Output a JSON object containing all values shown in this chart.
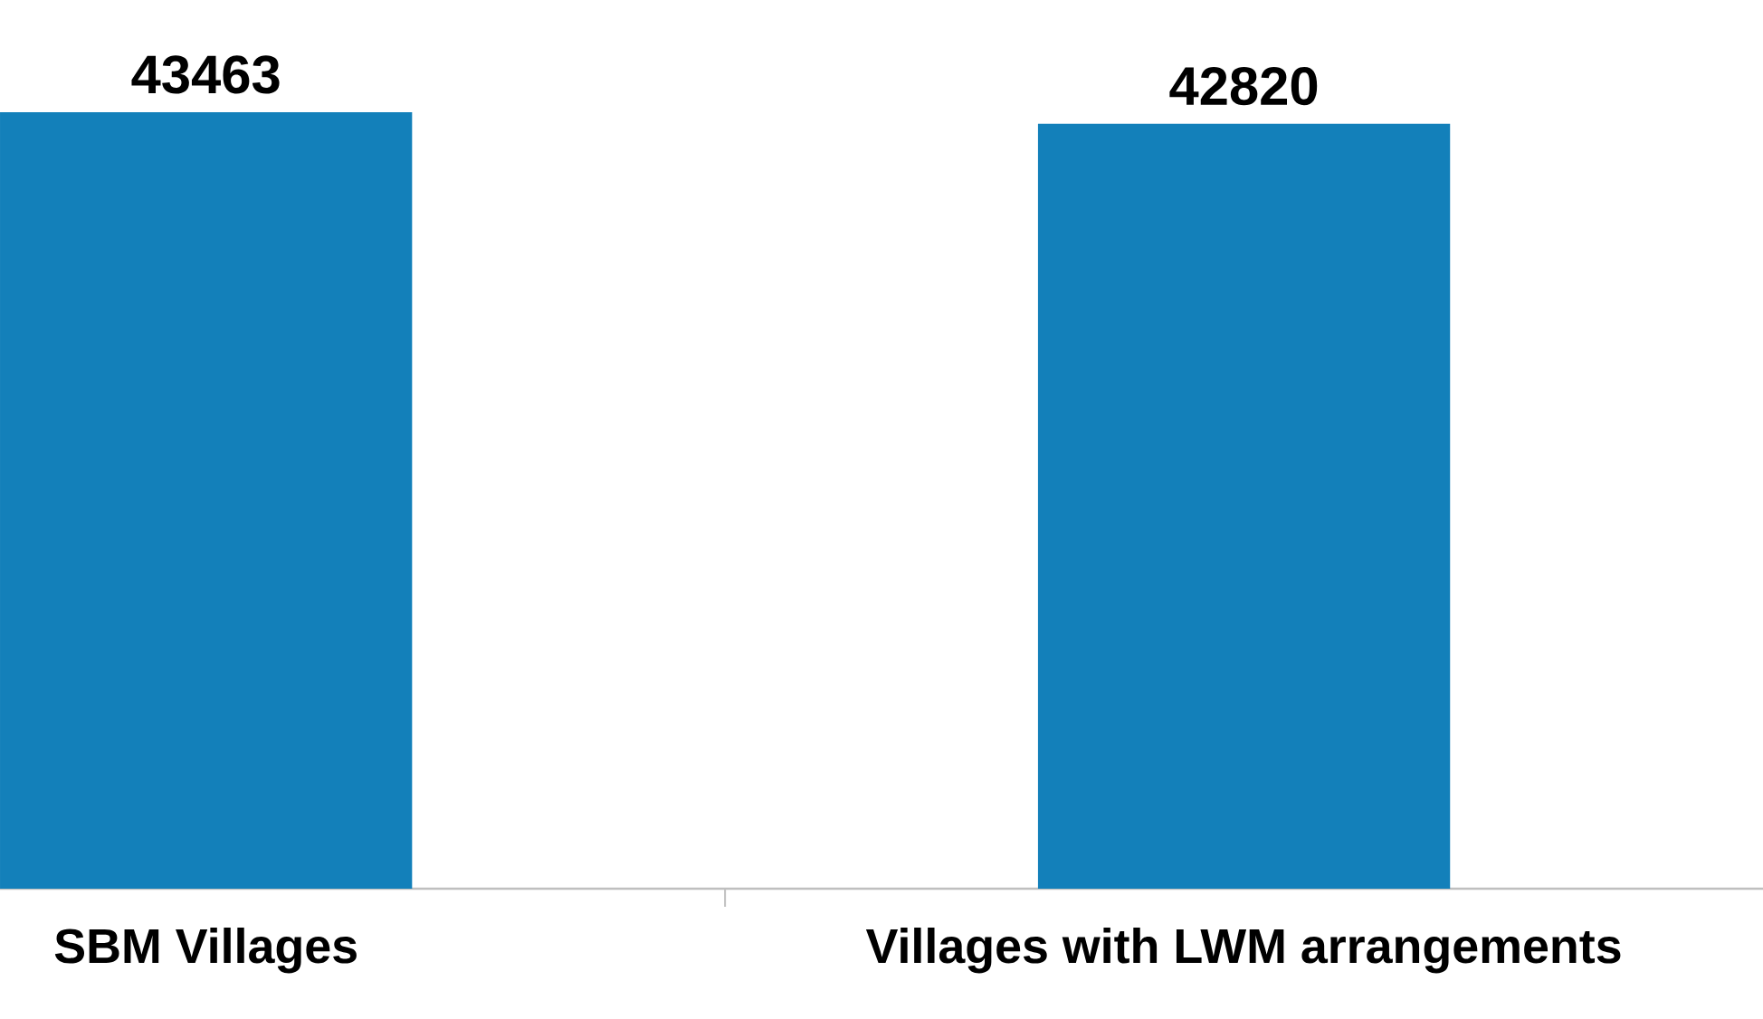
{
  "chart_data": {
    "type": "bar",
    "categories": [
      "SBM Villages",
      "Villages with LWM arrangements"
    ],
    "values": [
      43463,
      42820
    ],
    "color": "#1380ba",
    "data_labels": true
  }
}
